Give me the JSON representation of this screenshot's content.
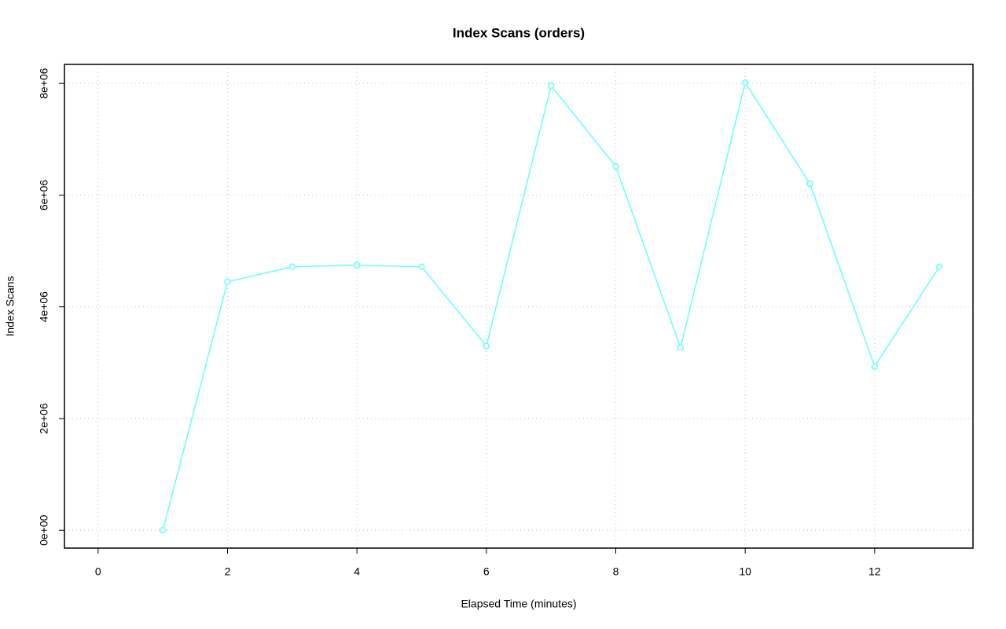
{
  "chart_data": {
    "type": "line",
    "title": "Index Scans (orders)",
    "x_label": "Elapsed Time (minutes)",
    "y_label": "Index Scans",
    "x": [
      1,
      2,
      3,
      4,
      5,
      6,
      7,
      8,
      9,
      10,
      11,
      12,
      13
    ],
    "values": [
      0,
      4449000,
      4716000,
      4744000,
      4716000,
      3298000,
      7958000,
      6512000,
      3270000,
      8014000,
      6204000,
      2933000,
      4716000
    ],
    "color": "#66ffff",
    "xlim": [
      -0.52,
      13.52
    ],
    "xticks": [
      0,
      2,
      4,
      6,
      8,
      10,
      12
    ],
    "ylim": [
      -320000,
      8340000
    ],
    "yticks": [
      {
        "value": 0,
        "label": "0e+00"
      },
      {
        "value": 2000000,
        "label": "2e+06"
      },
      {
        "value": 4000000,
        "label": "4e+06"
      },
      {
        "value": 6000000,
        "label": "6e+06"
      },
      {
        "value": 8000000,
        "label": "8e+06"
      }
    ],
    "grid": true
  }
}
